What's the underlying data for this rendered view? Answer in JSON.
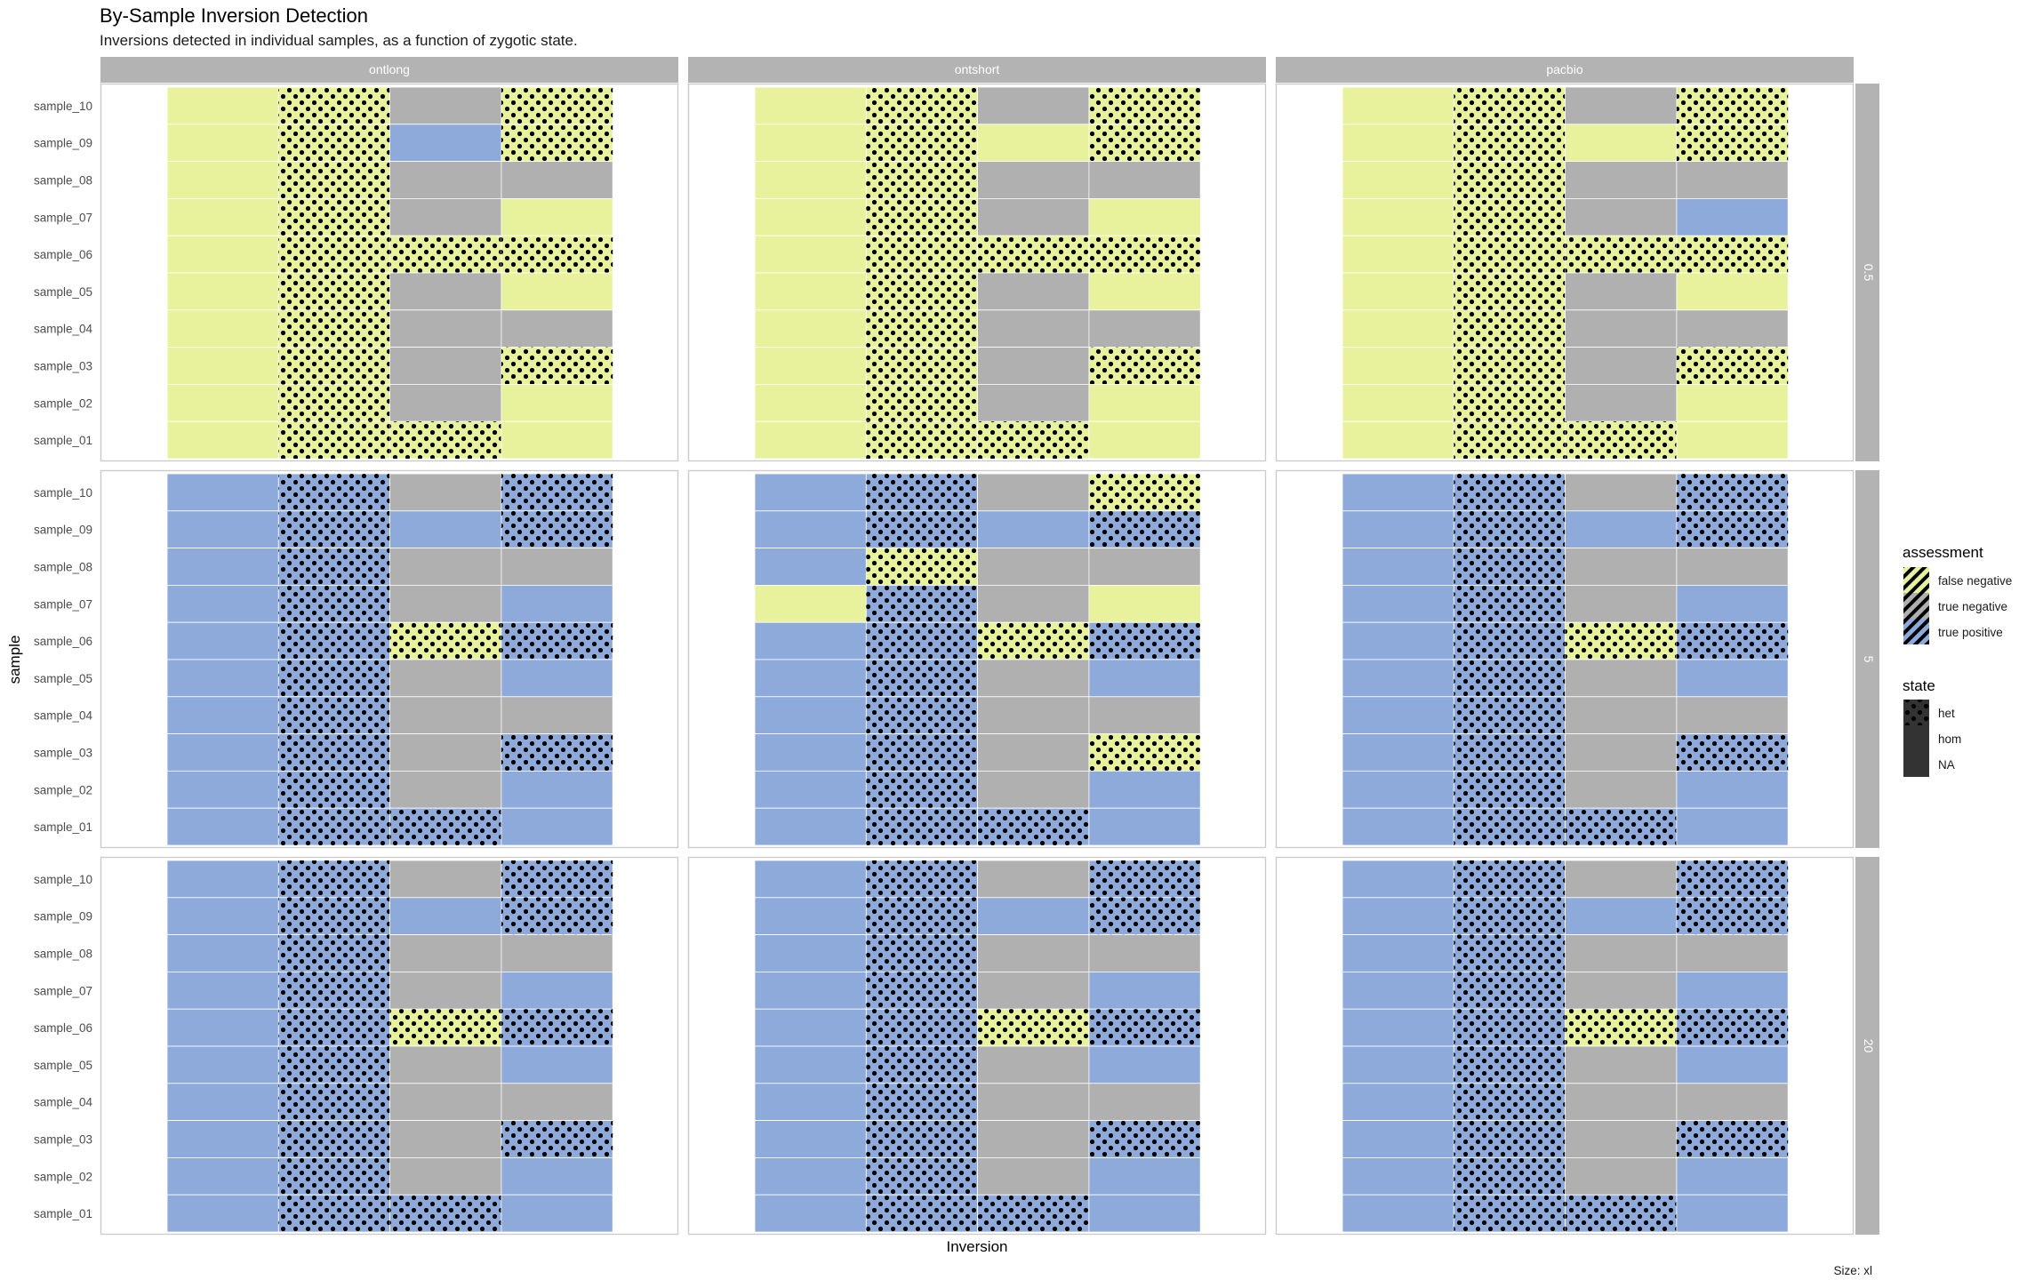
{
  "chart_data": {
    "type": "heatmap",
    "title": "By-Sample Inversion Detection",
    "subtitle": "Inversions detected in individual samples, as a function of zygotic state.",
    "xlabel": "Inversion",
    "ylabel": "sample",
    "caption": "Size: xl",
    "facet_columns": [
      "ontlong",
      "ontshort",
      "pacbio"
    ],
    "facet_rows": [
      "0.5",
      "5",
      "20"
    ],
    "samples": [
      "sample_01",
      "sample_02",
      "sample_03",
      "sample_04",
      "sample_05",
      "sample_06",
      "sample_07",
      "sample_08",
      "sample_09",
      "sample_10"
    ],
    "assessment_codes": {
      "F": "false negative",
      "N": "true negative",
      "P": "true positive"
    },
    "state_codes": {
      "h": "het",
      "o": "hom",
      "-": "NA"
    },
    "cell_encoding": "each row lists sample_10 down to sample_01; each token is assessment code + state code for inversions 1-4",
    "colors": {
      "false negative": "#e8f29c",
      "true negative": "#b0b0b0",
      "true positive": "#8eaadb",
      "strip": "#b3b3b3",
      "dots": "#000000"
    },
    "facets": [
      {
        "row": "0.5",
        "col": "ontlong",
        "rows": [
          [
            "Fo",
            "Fh",
            "N-",
            "Fh"
          ],
          [
            "Fo",
            "Fh",
            "Po",
            "Fh"
          ],
          [
            "Fo",
            "Fh",
            "N-",
            "N-"
          ],
          [
            "Fo",
            "Fh",
            "N-",
            "Fo"
          ],
          [
            "Fo",
            "Fh",
            "Fh",
            "Fh"
          ],
          [
            "Fo",
            "Fh",
            "N-",
            "Fo"
          ],
          [
            "Fo",
            "Fh",
            "N-",
            "N-"
          ],
          [
            "Fo",
            "Fh",
            "N-",
            "Fh"
          ],
          [
            "Fo",
            "Fh",
            "N-",
            "Fo"
          ],
          [
            "Fo",
            "Fh",
            "Fh",
            "Fo"
          ]
        ]
      },
      {
        "row": "0.5",
        "col": "ontshort",
        "rows": [
          [
            "Fo",
            "Fh",
            "N-",
            "Fh"
          ],
          [
            "Fo",
            "Fh",
            "Fo",
            "Fh"
          ],
          [
            "Fo",
            "Fh",
            "N-",
            "N-"
          ],
          [
            "Fo",
            "Fh",
            "N-",
            "Fo"
          ],
          [
            "Fo",
            "Fh",
            "Fh",
            "Fh"
          ],
          [
            "Fo",
            "Fh",
            "N-",
            "Fo"
          ],
          [
            "Fo",
            "Fh",
            "N-",
            "N-"
          ],
          [
            "Fo",
            "Fh",
            "N-",
            "Fh"
          ],
          [
            "Fo",
            "Fh",
            "N-",
            "Fo"
          ],
          [
            "Fo",
            "Fh",
            "Fh",
            "Fo"
          ]
        ]
      },
      {
        "row": "0.5",
        "col": "pacbio",
        "rows": [
          [
            "Fo",
            "Fh",
            "N-",
            "Fh"
          ],
          [
            "Fo",
            "Fh",
            "Fo",
            "Fh"
          ],
          [
            "Fo",
            "Fh",
            "N-",
            "N-"
          ],
          [
            "Fo",
            "Fh",
            "N-",
            "Po"
          ],
          [
            "Fo",
            "Fh",
            "Fh",
            "Fh"
          ],
          [
            "Fo",
            "Fh",
            "N-",
            "Fo"
          ],
          [
            "Fo",
            "Fh",
            "N-",
            "N-"
          ],
          [
            "Fo",
            "Fh",
            "N-",
            "Fh"
          ],
          [
            "Fo",
            "Fh",
            "N-",
            "Fo"
          ],
          [
            "Fo",
            "Fh",
            "Fh",
            "Fo"
          ]
        ]
      },
      {
        "row": "5",
        "col": "ontlong",
        "rows": [
          [
            "Po",
            "Ph",
            "N-",
            "Ph"
          ],
          [
            "Po",
            "Ph",
            "Po",
            "Ph"
          ],
          [
            "Po",
            "Ph",
            "N-",
            "N-"
          ],
          [
            "Po",
            "Ph",
            "N-",
            "Po"
          ],
          [
            "Po",
            "Ph",
            "Fh",
            "Ph"
          ],
          [
            "Po",
            "Ph",
            "N-",
            "Po"
          ],
          [
            "Po",
            "Ph",
            "N-",
            "N-"
          ],
          [
            "Po",
            "Ph",
            "N-",
            "Ph"
          ],
          [
            "Po",
            "Ph",
            "N-",
            "Po"
          ],
          [
            "Po",
            "Ph",
            "Ph",
            "Po"
          ]
        ]
      },
      {
        "row": "5",
        "col": "ontshort",
        "rows": [
          [
            "Po",
            "Ph",
            "N-",
            "Fh"
          ],
          [
            "Po",
            "Ph",
            "Po",
            "Ph"
          ],
          [
            "Po",
            "Fh",
            "N-",
            "N-"
          ],
          [
            "Fo",
            "Ph",
            "N-",
            "Fo"
          ],
          [
            "Po",
            "Ph",
            "Fh",
            "Ph"
          ],
          [
            "Po",
            "Ph",
            "N-",
            "Po"
          ],
          [
            "Po",
            "Ph",
            "N-",
            "N-"
          ],
          [
            "Po",
            "Ph",
            "N-",
            "Fh"
          ],
          [
            "Po",
            "Ph",
            "N-",
            "Po"
          ],
          [
            "Po",
            "Ph",
            "Ph",
            "Po"
          ]
        ]
      },
      {
        "row": "5",
        "col": "pacbio",
        "rows": [
          [
            "Po",
            "Ph",
            "N-",
            "Ph"
          ],
          [
            "Po",
            "Ph",
            "Po",
            "Ph"
          ],
          [
            "Po",
            "Ph",
            "N-",
            "N-"
          ],
          [
            "Po",
            "Ph",
            "N-",
            "Po"
          ],
          [
            "Po",
            "Ph",
            "Fh",
            "Ph"
          ],
          [
            "Po",
            "Ph",
            "N-",
            "Po"
          ],
          [
            "Po",
            "Ph",
            "N-",
            "N-"
          ],
          [
            "Po",
            "Ph",
            "N-",
            "Ph"
          ],
          [
            "Po",
            "Ph",
            "N-",
            "Po"
          ],
          [
            "Po",
            "Ph",
            "Ph",
            "Po"
          ]
        ]
      },
      {
        "row": "20",
        "col": "ontlong",
        "rows": [
          [
            "Po",
            "Ph",
            "N-",
            "Ph"
          ],
          [
            "Po",
            "Ph",
            "Po",
            "Ph"
          ],
          [
            "Po",
            "Ph",
            "N-",
            "N-"
          ],
          [
            "Po",
            "Ph",
            "N-",
            "Po"
          ],
          [
            "Po",
            "Ph",
            "Fh",
            "Ph"
          ],
          [
            "Po",
            "Ph",
            "N-",
            "Po"
          ],
          [
            "Po",
            "Ph",
            "N-",
            "N-"
          ],
          [
            "Po",
            "Ph",
            "N-",
            "Ph"
          ],
          [
            "Po",
            "Ph",
            "N-",
            "Po"
          ],
          [
            "Po",
            "Ph",
            "Ph",
            "Po"
          ]
        ]
      },
      {
        "row": "20",
        "col": "ontshort",
        "rows": [
          [
            "Po",
            "Ph",
            "N-",
            "Ph"
          ],
          [
            "Po",
            "Ph",
            "Po",
            "Ph"
          ],
          [
            "Po",
            "Ph",
            "N-",
            "N-"
          ],
          [
            "Po",
            "Ph",
            "N-",
            "Po"
          ],
          [
            "Po",
            "Ph",
            "Fh",
            "Ph"
          ],
          [
            "Po",
            "Ph",
            "N-",
            "Po"
          ],
          [
            "Po",
            "Ph",
            "N-",
            "N-"
          ],
          [
            "Po",
            "Ph",
            "N-",
            "Ph"
          ],
          [
            "Po",
            "Ph",
            "N-",
            "Po"
          ],
          [
            "Po",
            "Ph",
            "Ph",
            "Po"
          ]
        ]
      },
      {
        "row": "20",
        "col": "pacbio",
        "rows": [
          [
            "Po",
            "Ph",
            "N-",
            "Ph"
          ],
          [
            "Po",
            "Ph",
            "Po",
            "Ph"
          ],
          [
            "Po",
            "Ph",
            "N-",
            "N-"
          ],
          [
            "Po",
            "Ph",
            "N-",
            "Po"
          ],
          [
            "Po",
            "Ph",
            "Fh",
            "Ph"
          ],
          [
            "Po",
            "Ph",
            "N-",
            "Po"
          ],
          [
            "Po",
            "Ph",
            "N-",
            "N-"
          ],
          [
            "Po",
            "Ph",
            "N-",
            "Ph"
          ],
          [
            "Po",
            "Ph",
            "N-",
            "Po"
          ],
          [
            "Po",
            "Ph",
            "Ph",
            "Po"
          ]
        ]
      }
    ],
    "legend": {
      "assessment": {
        "title": "assessment",
        "items": [
          "false negative",
          "true negative",
          "true positive"
        ]
      },
      "state": {
        "title": "state",
        "items": [
          "het",
          "hom",
          "NA"
        ]
      },
      "placement": "right"
    },
    "grid": false
  }
}
